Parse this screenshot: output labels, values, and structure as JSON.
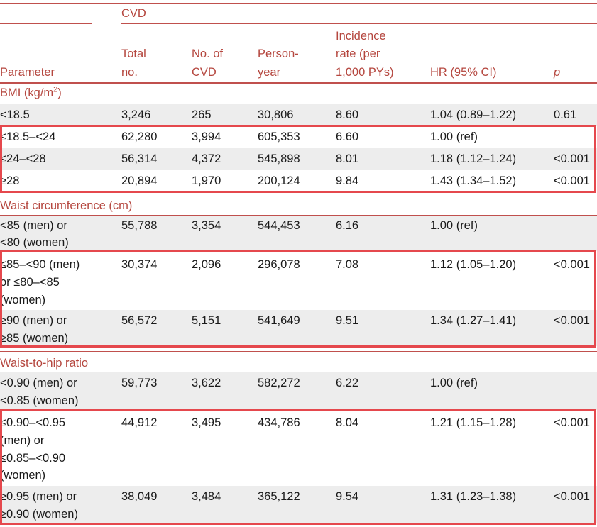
{
  "header": {
    "group_label": "CVD",
    "col_parameter": "Parameter",
    "col_total_1": "Total",
    "col_total_2": "no.",
    "col_cvd_1": "No. of",
    "col_cvd_2": "CVD",
    "col_py_1": "Person-",
    "col_py_2": "year",
    "col_ir_1": "Incidence",
    "col_ir_2": "rate (per",
    "col_ir_3": "1,000 PYs)",
    "col_hr": "HR (95% CI)",
    "col_p": "p"
  },
  "sections": {
    "bmi": "BMI (kg/m",
    "bmi_sup": "2",
    "bmi_close": ")",
    "waist": "Waist circumference (cm)",
    "whr": "Waist-to-hip ratio"
  },
  "rows": [
    {
      "param": [
        "<18.5"
      ],
      "total": "3,246",
      "cvd": "265",
      "py": "30,806",
      "ir": "8.60",
      "hr": "1.04 (0.89–1.22)",
      "p": "0.61"
    },
    {
      "param": [
        "≤18.5–<24"
      ],
      "total": "62,280",
      "cvd": "3,994",
      "py": "605,353",
      "ir": "6.60",
      "hr": "1.00 (ref)",
      "p": ""
    },
    {
      "param": [
        "≤24–<28"
      ],
      "total": "56,314",
      "cvd": "4,372",
      "py": "545,898",
      "ir": "8.01",
      "hr": "1.18 (1.12–1.24)",
      "p": "<0.001"
    },
    {
      "param": [
        "≥28"
      ],
      "total": "20,894",
      "cvd": "1,970",
      "py": "200,124",
      "ir": "9.84",
      "hr": "1.43 (1.34–1.52)",
      "p": "<0.001"
    },
    {
      "param": [
        "<85 (men) or",
        "<80 (women)"
      ],
      "total": "55,788",
      "cvd": "3,354",
      "py": "544,453",
      "ir": "6.16",
      "hr": "1.00 (ref)",
      "p": ""
    },
    {
      "param": [
        "≤85–<90 (men)",
        "or ≤80–<85",
        "(women)"
      ],
      "total": "30,374",
      "cvd": "2,096",
      "py": "296,078",
      "ir": "7.08",
      "hr": "1.12 (1.05–1.20)",
      "p": "<0.001"
    },
    {
      "param": [
        "≥90 (men) or",
        "≥85 (women)"
      ],
      "total": "56,572",
      "cvd": "5,151",
      "py": "541,649",
      "ir": "9.51",
      "hr": "1.34 (1.27–1.41)",
      "p": "<0.001"
    },
    {
      "param": [
        "<0.90 (men) or",
        "<0.85 (women)"
      ],
      "total": "59,773",
      "cvd": "3,622",
      "py": "582,272",
      "ir": "6.22",
      "hr": "1.00 (ref)",
      "p": ""
    },
    {
      "param": [
        "≤0.90–<0.95",
        "(men) or",
        "≤0.85–<0.90",
        "(women)"
      ],
      "total": "44,912",
      "cvd": "3,495",
      "py": "434,786",
      "ir": "8.04",
      "hr": "1.21 (1.15–1.28)",
      "p": "<0.001"
    },
    {
      "param": [
        "≥0.95 (men) or",
        "≥0.90 (women)"
      ],
      "total": "38,049",
      "cvd": "3,484",
      "py": "365,122",
      "ir": "9.54",
      "hr": "1.31 (1.23–1.38)",
      "p": "<0.001"
    }
  ]
}
